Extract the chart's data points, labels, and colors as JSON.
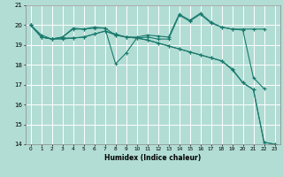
{
  "title": "",
  "xlabel": "Humidex (Indice chaleur)",
  "ylabel": "",
  "bg_color": "#b2ddd4",
  "grid_color": "#ffffff",
  "line_color": "#1a7a6e",
  "xlim": [
    -0.5,
    23.5
  ],
  "ylim": [
    14,
    21
  ],
  "xticks": [
    0,
    1,
    2,
    3,
    4,
    5,
    6,
    7,
    8,
    9,
    10,
    11,
    12,
    13,
    14,
    15,
    16,
    17,
    18,
    19,
    20,
    21,
    22,
    23
  ],
  "yticks": [
    14,
    15,
    16,
    17,
    18,
    19,
    20,
    21
  ],
  "line1_x": [
    0,
    1,
    2,
    3,
    4,
    5,
    6,
    7,
    8,
    9,
    10,
    11,
    12,
    13,
    14,
    15,
    16,
    17,
    18,
    19,
    20,
    21,
    22
  ],
  "line1_y": [
    20.0,
    19.4,
    19.3,
    19.4,
    19.85,
    19.8,
    19.9,
    19.85,
    19.5,
    19.4,
    19.4,
    19.5,
    19.45,
    19.4,
    20.55,
    20.25,
    20.6,
    20.15,
    19.9,
    19.8,
    19.8,
    19.8,
    19.8
  ],
  "line2_x": [
    0,
    1,
    2,
    3,
    4,
    5,
    6,
    7,
    8,
    9,
    10,
    11,
    12,
    13,
    14,
    15,
    16,
    17,
    18,
    19,
    20,
    21,
    22
  ],
  "line2_y": [
    20.0,
    19.4,
    19.3,
    19.4,
    19.8,
    19.8,
    19.85,
    19.85,
    18.05,
    18.6,
    19.35,
    19.4,
    19.3,
    19.3,
    20.5,
    20.2,
    20.55,
    20.1,
    19.9,
    19.8,
    19.75,
    17.35,
    16.8
  ],
  "line3_x": [
    0,
    1,
    2,
    3,
    4,
    5,
    6,
    7,
    8,
    9,
    10,
    11,
    12,
    13,
    14,
    15,
    16,
    17,
    18,
    19,
    20,
    21,
    22,
    23
  ],
  "line3_y": [
    20.0,
    19.4,
    19.3,
    19.35,
    19.35,
    19.4,
    19.55,
    19.7,
    19.5,
    19.4,
    19.35,
    19.25,
    19.1,
    18.95,
    18.8,
    18.65,
    18.5,
    18.35,
    18.2,
    17.75,
    17.1,
    16.75,
    14.1,
    14.0
  ],
  "line4_x": [
    0,
    1,
    2,
    3,
    4,
    5,
    6,
    7,
    8,
    9,
    10,
    11,
    12,
    13,
    14,
    15,
    16,
    17,
    18,
    19,
    20,
    21,
    22,
    23
  ],
  "line4_y": [
    20.0,
    19.5,
    19.3,
    19.3,
    19.35,
    19.4,
    19.55,
    19.7,
    19.55,
    19.4,
    19.35,
    19.25,
    19.1,
    18.95,
    18.8,
    18.65,
    18.5,
    18.35,
    18.2,
    17.8,
    17.1,
    16.75,
    14.1,
    14.0
  ]
}
